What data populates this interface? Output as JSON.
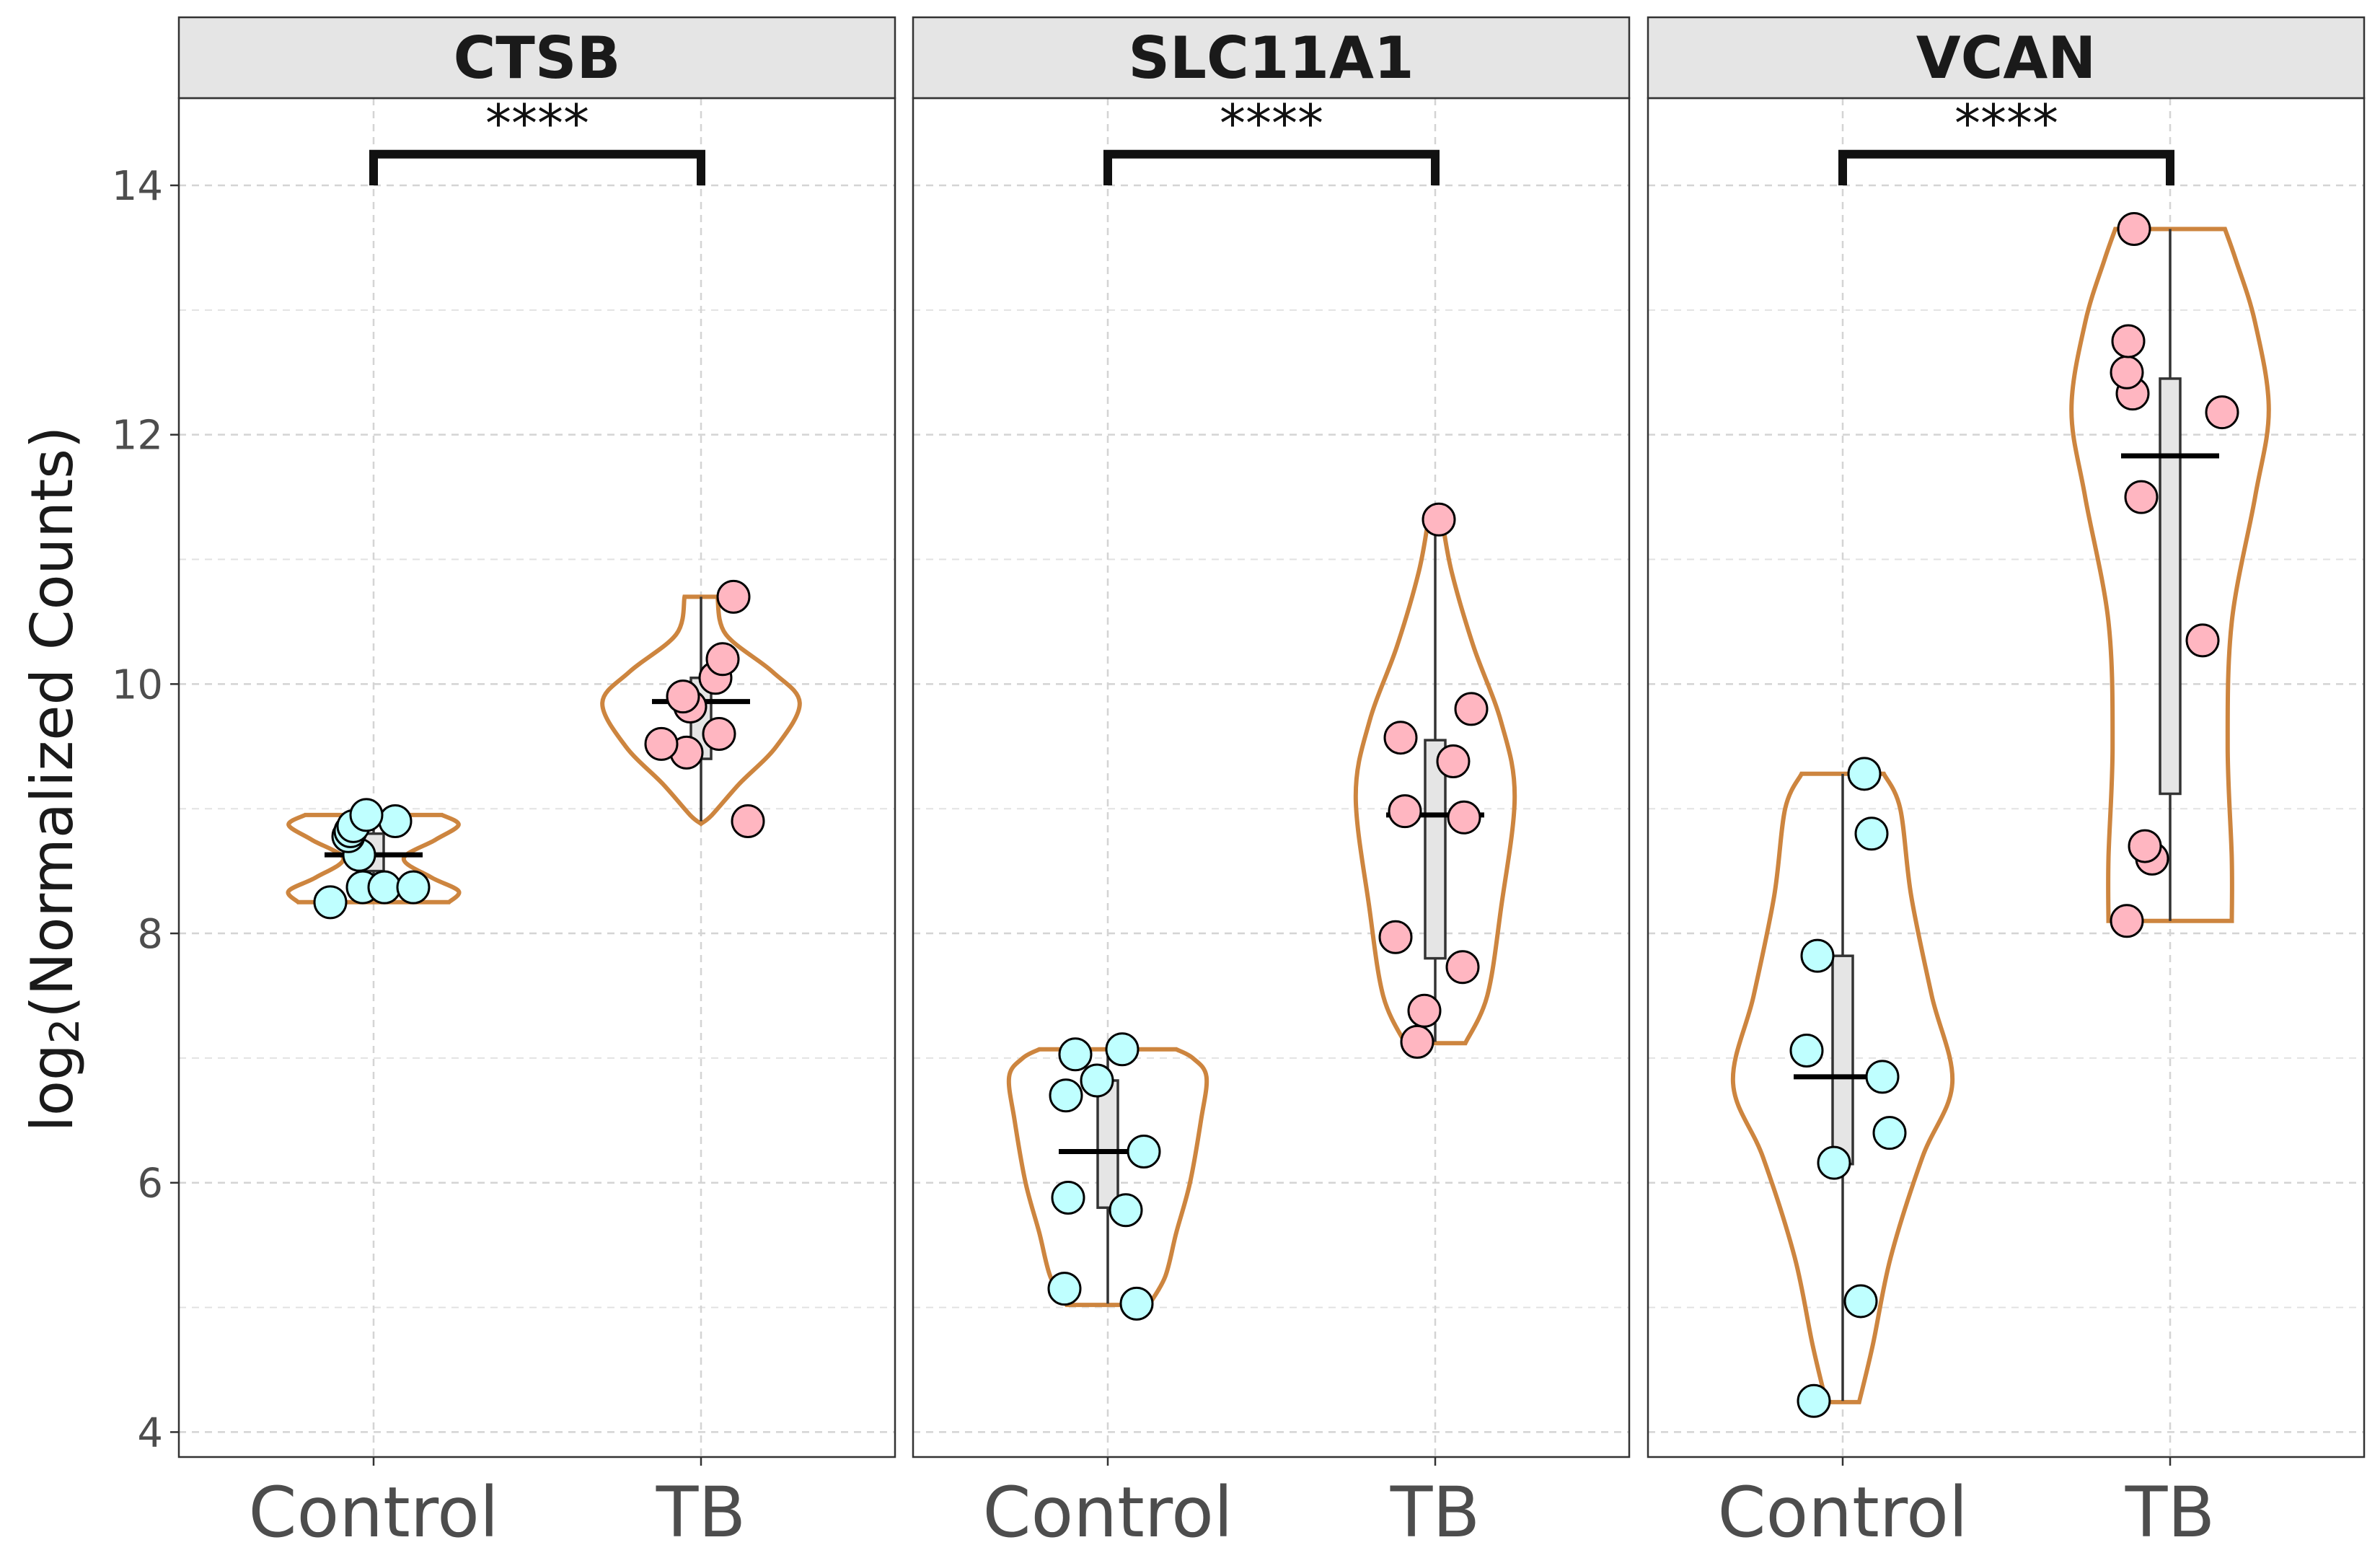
{
  "chart_data": {
    "type": "violin",
    "ylabel": "log",
    "ylabel_sub": "2",
    "ylabel_rest": "(Normalized Counts)",
    "ylim": [
      3.8,
      14.7
    ],
    "yticks": [
      4,
      6,
      8,
      10,
      12,
      14
    ],
    "grid": true,
    "categories": [
      "Control",
      "TB"
    ],
    "colors": {
      "Control": "#bfffff",
      "TB": "#ffb6c1",
      "violin": "#cd853f",
      "box": "#e5e5e5"
    },
    "panels": [
      {
        "title": "CTSB",
        "significance": "****",
        "groups": [
          {
            "name": "Control",
            "points": [
              8.25,
              8.37,
              8.37,
              8.37,
              8.63,
              8.78,
              8.82,
              8.86,
              8.9,
              8.95
            ],
            "box": [
              8.38,
              8.5,
              8.64,
              8.8,
              8.93
            ],
            "mean": 8.63,
            "violin": [
              [
                8.25,
                0.55
              ],
              [
                8.34,
                0.62
              ],
              [
                8.45,
                0.42
              ],
              [
                8.6,
                0.22
              ],
              [
                8.75,
                0.45
              ],
              [
                8.87,
                0.62
              ],
              [
                8.95,
                0.5
              ]
            ]
          },
          {
            "name": "TB",
            "points": [
              8.9,
              9.45,
              9.52,
              9.6,
              9.82,
              9.9,
              10.05,
              10.2,
              10.7
            ],
            "box": [
              8.9,
              9.4,
              9.85,
              10.05,
              10.7
            ],
            "mean": 9.86,
            "violin": [
              [
                8.88,
                0.0
              ],
              [
                8.95,
                0.08
              ],
              [
                9.2,
                0.28
              ],
              [
                9.5,
                0.55
              ],
              [
                9.85,
                0.72
              ],
              [
                10.1,
                0.52
              ],
              [
                10.4,
                0.18
              ],
              [
                10.7,
                0.12
              ]
            ]
          }
        ]
      },
      {
        "title": "SLC11A1",
        "significance": "****",
        "groups": [
          {
            "name": "Control",
            "points": [
              5.03,
              5.15,
              5.78,
              5.88,
              6.25,
              6.7,
              6.82,
              7.03,
              7.07
            ],
            "box": [
              5.03,
              5.8,
              6.3,
              6.82,
              7.07
            ],
            "mean": 6.25,
            "violin": [
              [
                5.02,
                0.3
              ],
              [
                5.25,
                0.42
              ],
              [
                5.6,
                0.5
              ],
              [
                6.0,
                0.6
              ],
              [
                6.5,
                0.68
              ],
              [
                6.85,
                0.72
              ],
              [
                7.0,
                0.62
              ],
              [
                7.07,
                0.5
              ]
            ]
          },
          {
            "name": "TB",
            "points": [
              7.13,
              7.38,
              7.73,
              7.97,
              8.93,
              8.98,
              9.38,
              9.57,
              9.8,
              11.32
            ],
            "box": [
              7.13,
              7.8,
              8.95,
              9.55,
              11.32
            ],
            "mean": 8.95,
            "violin": [
              [
                7.12,
                0.22
              ],
              [
                7.5,
                0.38
              ],
              [
                8.2,
                0.48
              ],
              [
                9.1,
                0.58
              ],
              [
                9.7,
                0.48
              ],
              [
                10.3,
                0.28
              ],
              [
                10.9,
                0.12
              ],
              [
                11.32,
                0.05
              ]
            ]
          }
        ]
      },
      {
        "title": "VCAN",
        "significance": "****",
        "groups": [
          {
            "name": "Control",
            "points": [
              4.25,
              5.05,
              6.16,
              6.4,
              6.85,
              7.06,
              7.82,
              8.8,
              9.28
            ],
            "box": [
              4.25,
              6.15,
              6.85,
              7.82,
              9.28
            ],
            "mean": 6.85,
            "violin": [
              [
                4.24,
                0.12
              ],
              [
                4.7,
                0.22
              ],
              [
                5.4,
                0.35
              ],
              [
                6.2,
                0.58
              ],
              [
                6.8,
                0.8
              ],
              [
                7.5,
                0.65
              ],
              [
                8.3,
                0.5
              ],
              [
                9.0,
                0.42
              ],
              [
                9.28,
                0.3
              ]
            ]
          },
          {
            "name": "TB",
            "points": [
              8.1,
              8.6,
              8.7,
              10.35,
              11.5,
              12.18,
              12.33,
              12.5,
              12.75,
              13.65
            ],
            "box": [
              8.1,
              9.12,
              11.83,
              12.45,
              13.65
            ],
            "mean": 11.83,
            "violin": [
              [
                8.1,
                0.45
              ],
              [
                8.6,
                0.45
              ],
              [
                9.5,
                0.42
              ],
              [
                10.5,
                0.45
              ],
              [
                11.5,
                0.62
              ],
              [
                12.2,
                0.72
              ],
              [
                12.9,
                0.62
              ],
              [
                13.4,
                0.48
              ],
              [
                13.65,
                0.4
              ]
            ]
          }
        ]
      }
    ]
  }
}
